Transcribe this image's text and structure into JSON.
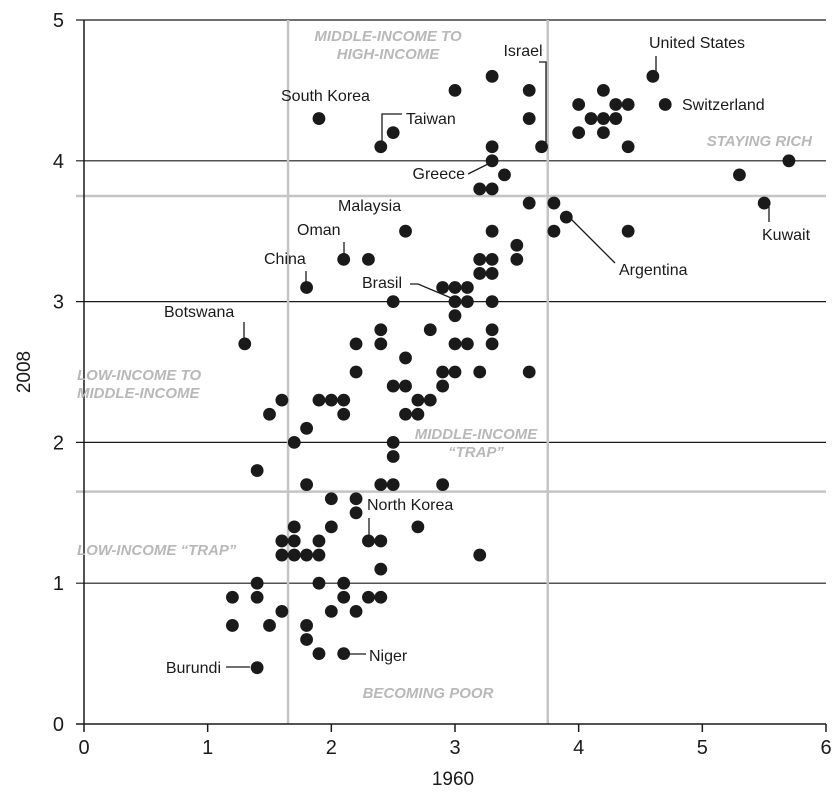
{
  "chart_data": {
    "type": "scatter",
    "xlabel": "1960",
    "ylabel": "2008",
    "xlim": [
      0,
      6
    ],
    "ylim": [
      0,
      5
    ],
    "xticks": [
      "0",
      "1",
      "2",
      "3",
      "4",
      "5",
      "6"
    ],
    "yticks": [
      "0",
      "1",
      "2",
      "3",
      "4",
      "5"
    ],
    "thresholds": {
      "x": [
        1.65,
        3.75
      ],
      "y": [
        1.65,
        3.75
      ]
    },
    "colors": {
      "points": "#1a1a1a",
      "grid": "#1a1a1a",
      "thresholds": "#c4c4c4",
      "region_text": "#b8b8b8"
    },
    "points": [
      [
        1.2,
        0.9
      ],
      [
        1.2,
        0.7
      ],
      [
        1.4,
        1.0
      ],
      [
        1.4,
        0.9
      ],
      [
        1.4,
        0.4
      ],
      [
        1.5,
        0.7
      ],
      [
        1.6,
        0.8
      ],
      [
        1.6,
        1.3
      ],
      [
        1.6,
        1.2
      ],
      [
        1.7,
        1.4
      ],
      [
        1.7,
        1.3
      ],
      [
        1.7,
        1.2
      ],
      [
        1.8,
        1.2
      ],
      [
        1.8,
        0.7
      ],
      [
        1.8,
        0.6
      ],
      [
        1.9,
        1.0
      ],
      [
        1.9,
        1.2
      ],
      [
        1.9,
        1.3
      ],
      [
        1.9,
        0.5
      ],
      [
        2.0,
        1.4
      ],
      [
        2.0,
        0.8
      ],
      [
        2.1,
        1.0
      ],
      [
        2.1,
        0.9
      ],
      [
        2.1,
        0.5
      ],
      [
        2.2,
        0.8
      ],
      [
        2.3,
        0.9
      ],
      [
        2.3,
        1.3
      ],
      [
        2.4,
        1.3
      ],
      [
        2.4,
        1.1
      ],
      [
        2.4,
        0.9
      ],
      [
        1.4,
        1.8
      ],
      [
        1.8,
        1.7
      ],
      [
        2.0,
        1.6
      ],
      [
        2.2,
        1.6
      ],
      [
        2.2,
        1.5
      ],
      [
        2.4,
        1.7
      ],
      [
        2.5,
        1.7
      ],
      [
        2.7,
        1.4
      ],
      [
        2.9,
        1.7
      ],
      [
        3.2,
        1.2
      ],
      [
        1.5,
        2.2
      ],
      [
        1.6,
        2.3
      ],
      [
        1.7,
        2.0
      ],
      [
        1.8,
        2.1
      ],
      [
        1.9,
        2.3
      ],
      [
        2.0,
        2.3
      ],
      [
        2.1,
        2.3
      ],
      [
        2.1,
        2.2
      ],
      [
        2.5,
        2.0
      ],
      [
        2.5,
        1.9
      ],
      [
        2.5,
        2.4
      ],
      [
        2.6,
        2.4
      ],
      [
        2.6,
        2.2
      ],
      [
        2.7,
        2.3
      ],
      [
        2.7,
        2.2
      ],
      [
        2.8,
        2.3
      ],
      [
        2.2,
        2.7
      ],
      [
        2.2,
        2.5
      ],
      [
        2.4,
        2.8
      ],
      [
        2.4,
        2.7
      ],
      [
        2.6,
        2.6
      ],
      [
        2.8,
        2.8
      ],
      [
        2.9,
        2.5
      ],
      [
        2.9,
        2.4
      ],
      [
        3.0,
        2.7
      ],
      [
        3.0,
        2.5
      ],
      [
        3.1,
        2.7
      ],
      [
        3.2,
        2.5
      ],
      [
        3.3,
        2.8
      ],
      [
        3.3,
        2.7
      ],
      [
        3.6,
        2.5
      ],
      [
        1.3,
        2.7
      ],
      [
        2.5,
        3.0
      ],
      [
        2.9,
        3.1
      ],
      [
        3.0,
        3.1
      ],
      [
        3.0,
        3.0
      ],
      [
        3.0,
        2.9
      ],
      [
        3.1,
        3.1
      ],
      [
        3.1,
        3.0
      ],
      [
        3.2,
        3.3
      ],
      [
        3.2,
        3.2
      ],
      [
        3.3,
        3.3
      ],
      [
        3.3,
        3.2
      ],
      [
        3.3,
        3.0
      ],
      [
        3.5,
        3.4
      ],
      [
        3.5,
        3.3
      ],
      [
        3.3,
        3.5
      ],
      [
        1.8,
        3.1
      ],
      [
        2.1,
        3.3
      ],
      [
        2.3,
        3.3
      ],
      [
        2.6,
        3.5
      ],
      [
        3.2,
        3.8
      ],
      [
        3.3,
        3.8
      ],
      [
        3.4,
        3.9
      ],
      [
        3.3,
        4.0
      ],
      [
        3.3,
        4.1
      ],
      [
        3.6,
        3.7
      ],
      [
        3.8,
        3.7
      ],
      [
        3.8,
        3.5
      ],
      [
        3.9,
        3.6
      ],
      [
        1.9,
        4.3
      ],
      [
        2.4,
        4.1
      ],
      [
        2.5,
        4.2
      ],
      [
        3.0,
        4.5
      ],
      [
        3.3,
        4.6
      ],
      [
        3.6,
        4.5
      ],
      [
        3.6,
        4.3
      ],
      [
        3.7,
        4.1
      ],
      [
        4.0,
        4.4
      ],
      [
        4.0,
        4.2
      ],
      [
        4.1,
        4.3
      ],
      [
        4.2,
        4.5
      ],
      [
        4.2,
        4.3
      ],
      [
        4.2,
        4.2
      ],
      [
        4.3,
        4.4
      ],
      [
        4.3,
        4.3
      ],
      [
        4.4,
        4.4
      ],
      [
        4.4,
        4.1
      ],
      [
        4.4,
        3.5
      ],
      [
        4.6,
        4.6
      ],
      [
        4.7,
        4.4
      ],
      [
        5.3,
        3.9
      ],
      [
        5.5,
        3.7
      ],
      [
        5.7,
        4.0
      ]
    ],
    "annotations": [
      {
        "label": "United States",
        "x": 4.6,
        "y": 4.6
      },
      {
        "label": "Switzerland",
        "x": 4.7,
        "y": 4.4
      },
      {
        "label": "Israel",
        "x": 3.7,
        "y": 4.1
      },
      {
        "label": "South Korea",
        "x": 1.9,
        "y": 4.3
      },
      {
        "label": "Taiwan",
        "x": 2.4,
        "y": 4.1
      },
      {
        "label": "Greece",
        "x": 3.3,
        "y": 4.0
      },
      {
        "label": "Kuwait",
        "x": 5.5,
        "y": 3.7
      },
      {
        "label": "Malaysia",
        "x": 2.6,
        "y": 3.5
      },
      {
        "label": "Oman",
        "x": 2.1,
        "y": 3.3
      },
      {
        "label": "Argentina",
        "x": 3.9,
        "y": 3.6
      },
      {
        "label": "China",
        "x": 1.8,
        "y": 3.1
      },
      {
        "label": "Brasil",
        "x": 3.0,
        "y": 3.0
      },
      {
        "label": "Botswana",
        "x": 1.3,
        "y": 2.7
      },
      {
        "label": "North Korea",
        "x": 2.3,
        "y": 1.3
      },
      {
        "label": "Niger",
        "x": 2.1,
        "y": 0.5
      },
      {
        "label": "Burundi",
        "x": 1.4,
        "y": 0.4
      }
    ],
    "regions": [
      {
        "lines": [
          "MIDDLE-INCOME TO",
          "HIGH-INCOME"
        ]
      },
      {
        "lines": [
          "STAYING RICH"
        ]
      },
      {
        "lines": [
          "LOW-INCOME TO",
          "MIDDLE-INCOME"
        ]
      },
      {
        "lines": [
          "MIDDLE-INCOME",
          "“TRAP”"
        ]
      },
      {
        "lines": [
          "LOW-INCOME “TRAP”"
        ]
      },
      {
        "lines": [
          "BECOMING POOR"
        ]
      }
    ]
  }
}
